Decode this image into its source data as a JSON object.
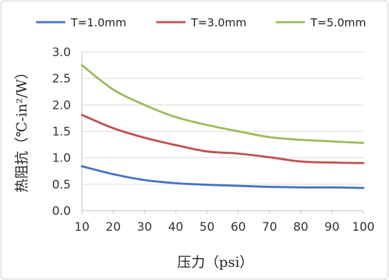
{
  "chart_data": {
    "type": "line",
    "xlabel": "压力（psi）",
    "ylabel": "热阻抗（℃-in²/W）",
    "xlim": [
      10,
      100
    ],
    "ylim": [
      0.0,
      3.0
    ],
    "x_ticks": [
      "10",
      "20",
      "30",
      "40",
      "50",
      "60",
      "70",
      "80",
      "90",
      "100"
    ],
    "y_ticks": [
      "0.0",
      "0.5",
      "1.0",
      "1.5",
      "2.0",
      "2.5",
      "3.0"
    ],
    "grid": "horizontal",
    "legend_position": "top",
    "x": [
      10,
      20,
      30,
      40,
      50,
      60,
      70,
      80,
      90,
      100
    ],
    "series": [
      {
        "name": "T=1.0mm",
        "color": "#4472C4",
        "values": [
          0.84,
          0.69,
          0.58,
          0.52,
          0.49,
          0.47,
          0.45,
          0.44,
          0.44,
          0.43
        ]
      },
      {
        "name": "T=3.0mm",
        "color": "#C0504D",
        "values": [
          1.81,
          1.56,
          1.38,
          1.24,
          1.12,
          1.08,
          1.01,
          0.93,
          0.91,
          0.9
        ]
      },
      {
        "name": "T=5.0mm",
        "color": "#9BBB59",
        "values": [
          2.75,
          2.29,
          2.0,
          1.77,
          1.62,
          1.5,
          1.39,
          1.34,
          1.31,
          1.28
        ]
      }
    ]
  }
}
